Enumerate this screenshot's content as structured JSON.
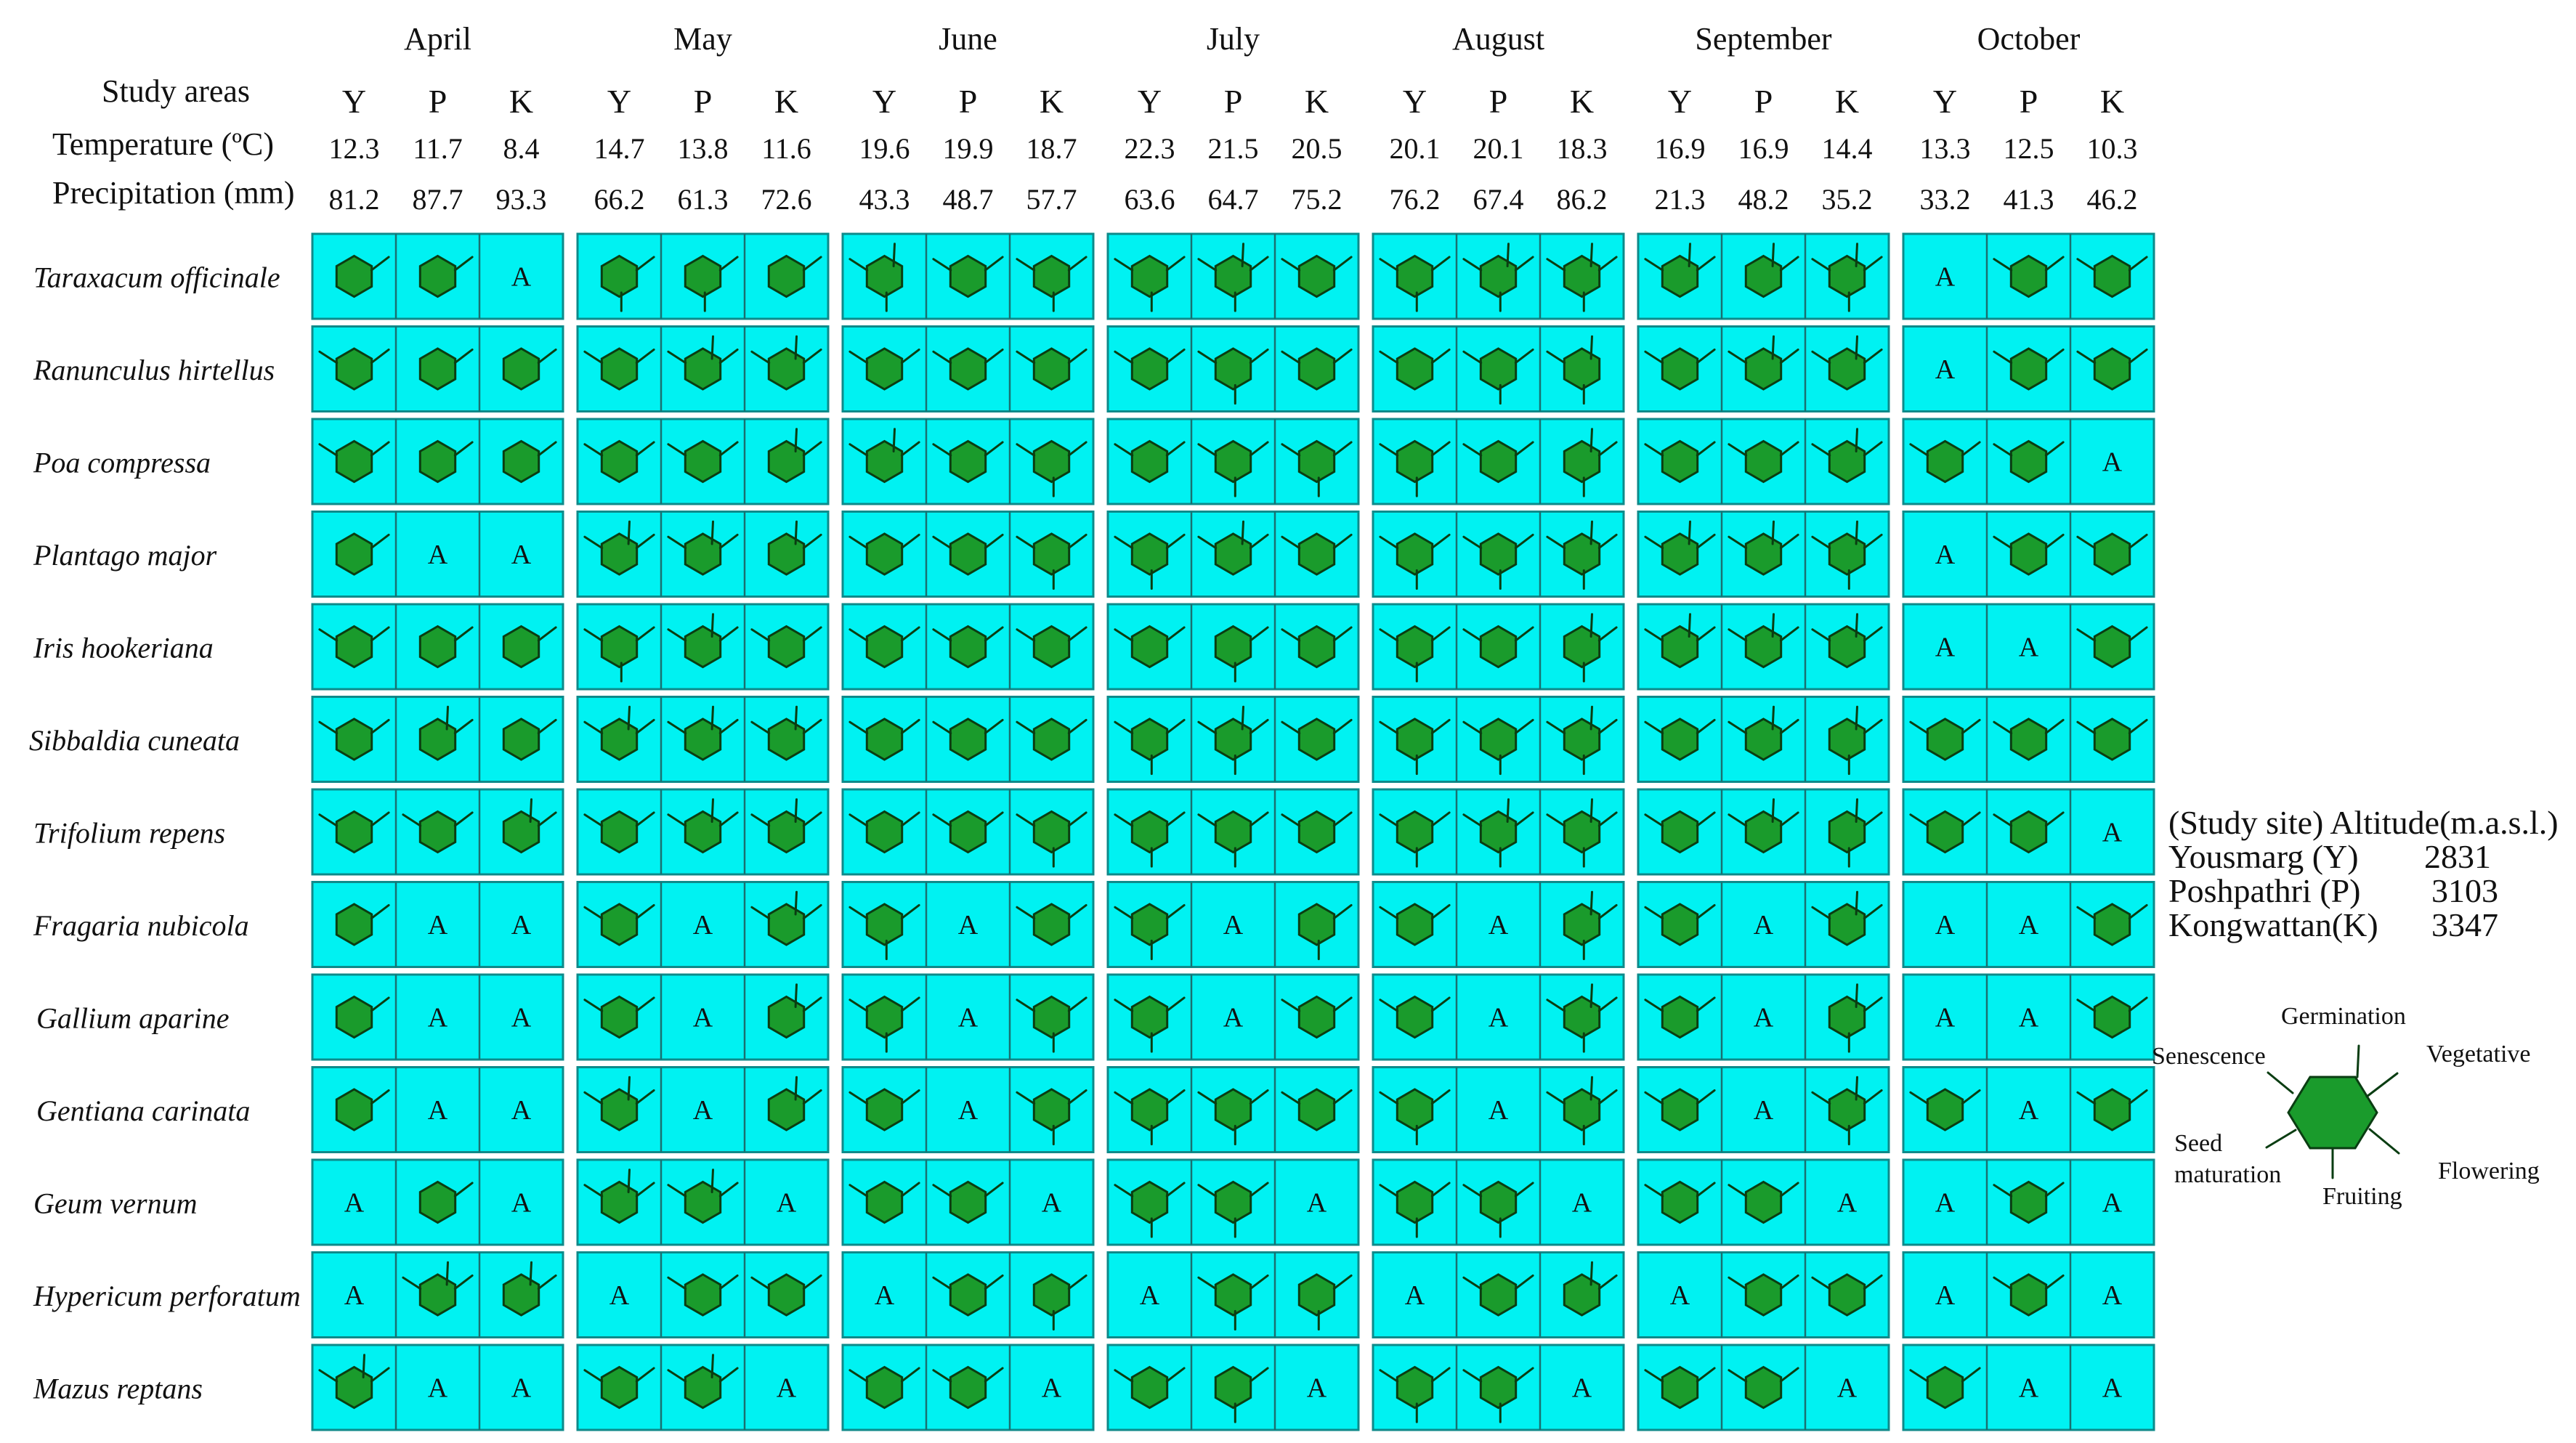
{
  "months": [
    {
      "name": "April",
      "temp": [
        "12.3",
        "11.7",
        "8.4"
      ],
      "precip": [
        "81.2",
        "87.7",
        "93.3"
      ]
    },
    {
      "name": "May",
      "temp": [
        "14.7",
        "13.8",
        "11.6"
      ],
      "precip": [
        "66.2",
        "61.3",
        "72.6"
      ]
    },
    {
      "name": "June",
      "temp": [
        "19.6",
        "19.9",
        "18.7"
      ],
      "precip": [
        "43.3",
        "48.7",
        "57.7"
      ]
    },
    {
      "name": "July",
      "temp": [
        "22.3",
        "21.5",
        "20.5"
      ],
      "precip": [
        "63.6",
        "64.7",
        "75.2"
      ]
    },
    {
      "name": "August",
      "temp": [
        "20.1",
        "20.1",
        "18.3"
      ],
      "precip": [
        "76.2",
        "67.4",
        "86.2"
      ]
    },
    {
      "name": "September",
      "temp": [
        "16.9",
        "16.9",
        "14.4"
      ],
      "precip": [
        "21.3",
        "48.2",
        "35.2"
      ]
    },
    {
      "name": "October",
      "temp": [
        "13.3",
        "12.5",
        "10.3"
      ],
      "precip": [
        "33.2",
        "41.3",
        "46.2"
      ]
    }
  ],
  "sites": [
    "Y",
    "P",
    "K"
  ],
  "row_labels": {
    "study_areas": "Study areas",
    "temperature": "Temperature  (ºC)",
    "precipitation": "Precipitation  (mm)"
  },
  "absent_symbol": "A",
  "species": [
    {
      "name": "Taraxacum officinale",
      "cells": [
        [
          "v",
          "v",
          "A"
        ],
        [
          "vf",
          "vf",
          "v"
        ],
        [
          "gfs",
          "vs",
          "vfs"
        ],
        [
          "vfs",
          "gvfs",
          "vs"
        ],
        [
          "vfs",
          "gvfs",
          "gvfs"
        ],
        [
          "gvs",
          "gv",
          "gvfs"
        ],
        [
          "A",
          "vs",
          "vs"
        ]
      ]
    },
    {
      "name": "Ranunculus hirtellus",
      "cells": [
        [
          "vs",
          "v",
          "v"
        ],
        [
          "vs",
          "gvs",
          "gvs"
        ],
        [
          "vs",
          "vs",
          "vs"
        ],
        [
          "vs",
          "vfs",
          "vs"
        ],
        [
          "vs",
          "vfs",
          "gfs"
        ],
        [
          "vs",
          "gvs",
          "gvs"
        ],
        [
          "A",
          "vs",
          "vs"
        ]
      ]
    },
    {
      "name": "Poa compressa",
      "cells": [
        [
          "vs",
          "v",
          "v"
        ],
        [
          "vs",
          "vs",
          "gv"
        ],
        [
          "gvs",
          "vs",
          "vfs"
        ],
        [
          "vs",
          "vfs",
          "vfs"
        ],
        [
          "vfs",
          "vs",
          "gvf"
        ],
        [
          "vs",
          "vs",
          "gvs"
        ],
        [
          "vs",
          "vs",
          "A"
        ]
      ]
    },
    {
      "name": "Plantago major",
      "cells": [
        [
          "v",
          "A",
          "A"
        ],
        [
          "gvs",
          "gvs",
          "gv"
        ],
        [
          "vs",
          "vs",
          "vfs"
        ],
        [
          "vfs",
          "gvs",
          "vs"
        ],
        [
          "vfs",
          "vfs",
          "gvfs"
        ],
        [
          "gvs",
          "gvs",
          "gvfs"
        ],
        [
          "A",
          "vs",
          "vs"
        ]
      ]
    },
    {
      "name": "Iris hookeriana",
      "cells": [
        [
          "vs",
          "v",
          "v"
        ],
        [
          "vfs",
          "gvs",
          "vs"
        ],
        [
          "vs",
          "vs",
          "vs"
        ],
        [
          "vs",
          "vf",
          "vs"
        ],
        [
          "vfs",
          "vs",
          "gvf"
        ],
        [
          "gvs",
          "gvs",
          "gvs"
        ],
        [
          "A",
          "A",
          "vs"
        ]
      ]
    },
    {
      "name": "Sibbaldia cuneata",
      "cells": [
        [
          "vs",
          "gv",
          "v"
        ],
        [
          "gvs",
          "gvs",
          "gvs"
        ],
        [
          "vs",
          "vs",
          "vs"
        ],
        [
          "vfs",
          "gvfs",
          "vs"
        ],
        [
          "vfs",
          "vfs",
          "gvfs"
        ],
        [
          "vs",
          "gvs",
          "gvf"
        ],
        [
          "vs",
          "vs",
          "vs"
        ]
      ]
    },
    {
      "name": "Trifolium repens",
      "cells": [
        [
          "vs",
          "vs",
          "gv"
        ],
        [
          "vs",
          "gvs",
          "gvs"
        ],
        [
          "vs",
          "vs",
          "vfs"
        ],
        [
          "vfs",
          "vfs",
          "vs"
        ],
        [
          "vfs",
          "gvfs",
          "gvfs"
        ],
        [
          "vs",
          "gvs",
          "gvf"
        ],
        [
          "vs",
          "vs",
          "A"
        ]
      ]
    },
    {
      "name": "Fragaria nubicola",
      "cells": [
        [
          "v",
          "A",
          "A"
        ],
        [
          "vs",
          "A",
          "gvs"
        ],
        [
          "vfs",
          "A",
          "vs"
        ],
        [
          "vfs",
          "A",
          "vf"
        ],
        [
          "vs",
          "A",
          "gvf"
        ],
        [
          "vs",
          "A",
          "gvs"
        ],
        [
          "A",
          "A",
          "vs"
        ]
      ]
    },
    {
      "name": "Gallium aparine",
      "cells": [
        [
          "v",
          "A",
          "A"
        ],
        [
          "vs",
          "A",
          "gv"
        ],
        [
          "vfs",
          "A",
          "vfs"
        ],
        [
          "vfs",
          "A",
          "vs"
        ],
        [
          "vs",
          "A",
          "gvfs"
        ],
        [
          "vs",
          "A",
          "gvf"
        ],
        [
          "A",
          "A",
          "vs"
        ]
      ]
    },
    {
      "name": "Gentiana carinata",
      "cells": [
        [
          "v",
          "A",
          "A"
        ],
        [
          "gvs",
          "A",
          "gv"
        ],
        [
          "vs",
          "A",
          "vfs"
        ],
        [
          "vfs",
          "vfs",
          "vs"
        ],
        [
          "vfs",
          "A",
          "gvfs"
        ],
        [
          "vs",
          "A",
          "gvfs"
        ],
        [
          "vs",
          "A",
          "vs"
        ]
      ]
    },
    {
      "name": "Geum vernum",
      "cells": [
        [
          "A",
          "v",
          "A"
        ],
        [
          "gvs",
          "gvs",
          "A"
        ],
        [
          "vs",
          "vs",
          "A"
        ],
        [
          "vfs",
          "vfs",
          "A"
        ],
        [
          "vfs",
          "vfs",
          "A"
        ],
        [
          "vs",
          "vs",
          "A"
        ],
        [
          "A",
          "vs",
          "A"
        ]
      ]
    },
    {
      "name": "Hypericum perforatum",
      "cells": [
        [
          "A",
          "gvs",
          "gv"
        ],
        [
          "A",
          "vs",
          "vs"
        ],
        [
          "A",
          "vs",
          "vf"
        ],
        [
          "A",
          "vfs",
          "vf"
        ],
        [
          "A",
          "vs",
          "gv"
        ],
        [
          "A",
          "vs",
          "vs"
        ],
        [
          "A",
          "vs",
          "A"
        ]
      ]
    },
    {
      "name": "Mazus reptans",
      "cells": [
        [
          "gvs",
          "A",
          "A"
        ],
        [
          "vs",
          "gvs",
          "A"
        ],
        [
          "vs",
          "vs",
          "A"
        ],
        [
          "vs",
          "vf",
          "A"
        ],
        [
          "vfs",
          "vfs",
          "A"
        ],
        [
          "vs",
          "vs",
          "A"
        ],
        [
          "vs",
          "A",
          "A"
        ]
      ]
    }
  ],
  "altitude_table": {
    "header": "(Study site) Altitude(m.a.s.l.)",
    "rows": [
      {
        "site": "Yousmarg (Y)",
        "altitude": "2831"
      },
      {
        "site": "Poshpathri (P)",
        "altitude": "3103"
      },
      {
        "site": "Kongwattan(K)",
        "altitude": "3347"
      }
    ]
  },
  "legend": {
    "germination": "Germination",
    "vegetative": "Vegetative",
    "flowering": "Flowering",
    "fruiting": "Fruiting",
    "seed_maturation_1": "Seed",
    "seed_maturation_2": "maturation",
    "senescence": "Senescence"
  },
  "colors": {
    "cell": "#00f2f2",
    "cell_border": "#0e8a8a",
    "hexagon": "#1a9b2c",
    "hexagon_border": "#0a3d12"
  }
}
